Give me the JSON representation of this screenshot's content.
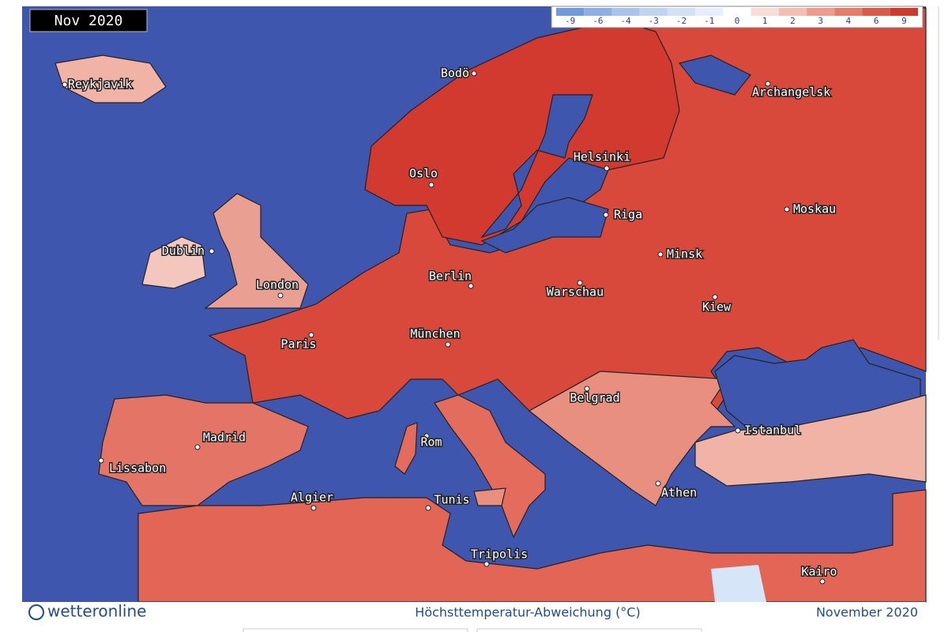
{
  "badge": "Nov 2020",
  "legend": {
    "labels": [
      -9,
      -6,
      -4,
      -3,
      -2,
      -1,
      0,
      1,
      2,
      3,
      4,
      6,
      9
    ],
    "colors": [
      "#6f9bd8",
      "#8db0e0",
      "#a8c4e8",
      "#bfd4ee",
      "#d3e1f4",
      "#e6eef9",
      "#ffffff",
      "#f9dcd5",
      "#f3bfb3",
      "#ec9d8e",
      "#e37e6d",
      "#d95a48",
      "#cc3a2e"
    ]
  },
  "cities": [
    "Reykjavik",
    "Bodö",
    "Oslo",
    "Helsinki",
    "Archangelsk",
    "Riga",
    "Moskau",
    "Dublin",
    "London",
    "Berlin",
    "Minsk",
    "Warschau",
    "Kiew",
    "Paris",
    "München",
    "Belgrad",
    "Istanbul",
    "Madrid",
    "Rom",
    "Lissabon",
    "Algier",
    "Tunis",
    "Athen",
    "Tripolis",
    "Kairo"
  ],
  "footer": {
    "logo": "wetteronline",
    "caption": "Höchsttemperatur-Abweichung (°C)",
    "date": "November 2020"
  }
}
